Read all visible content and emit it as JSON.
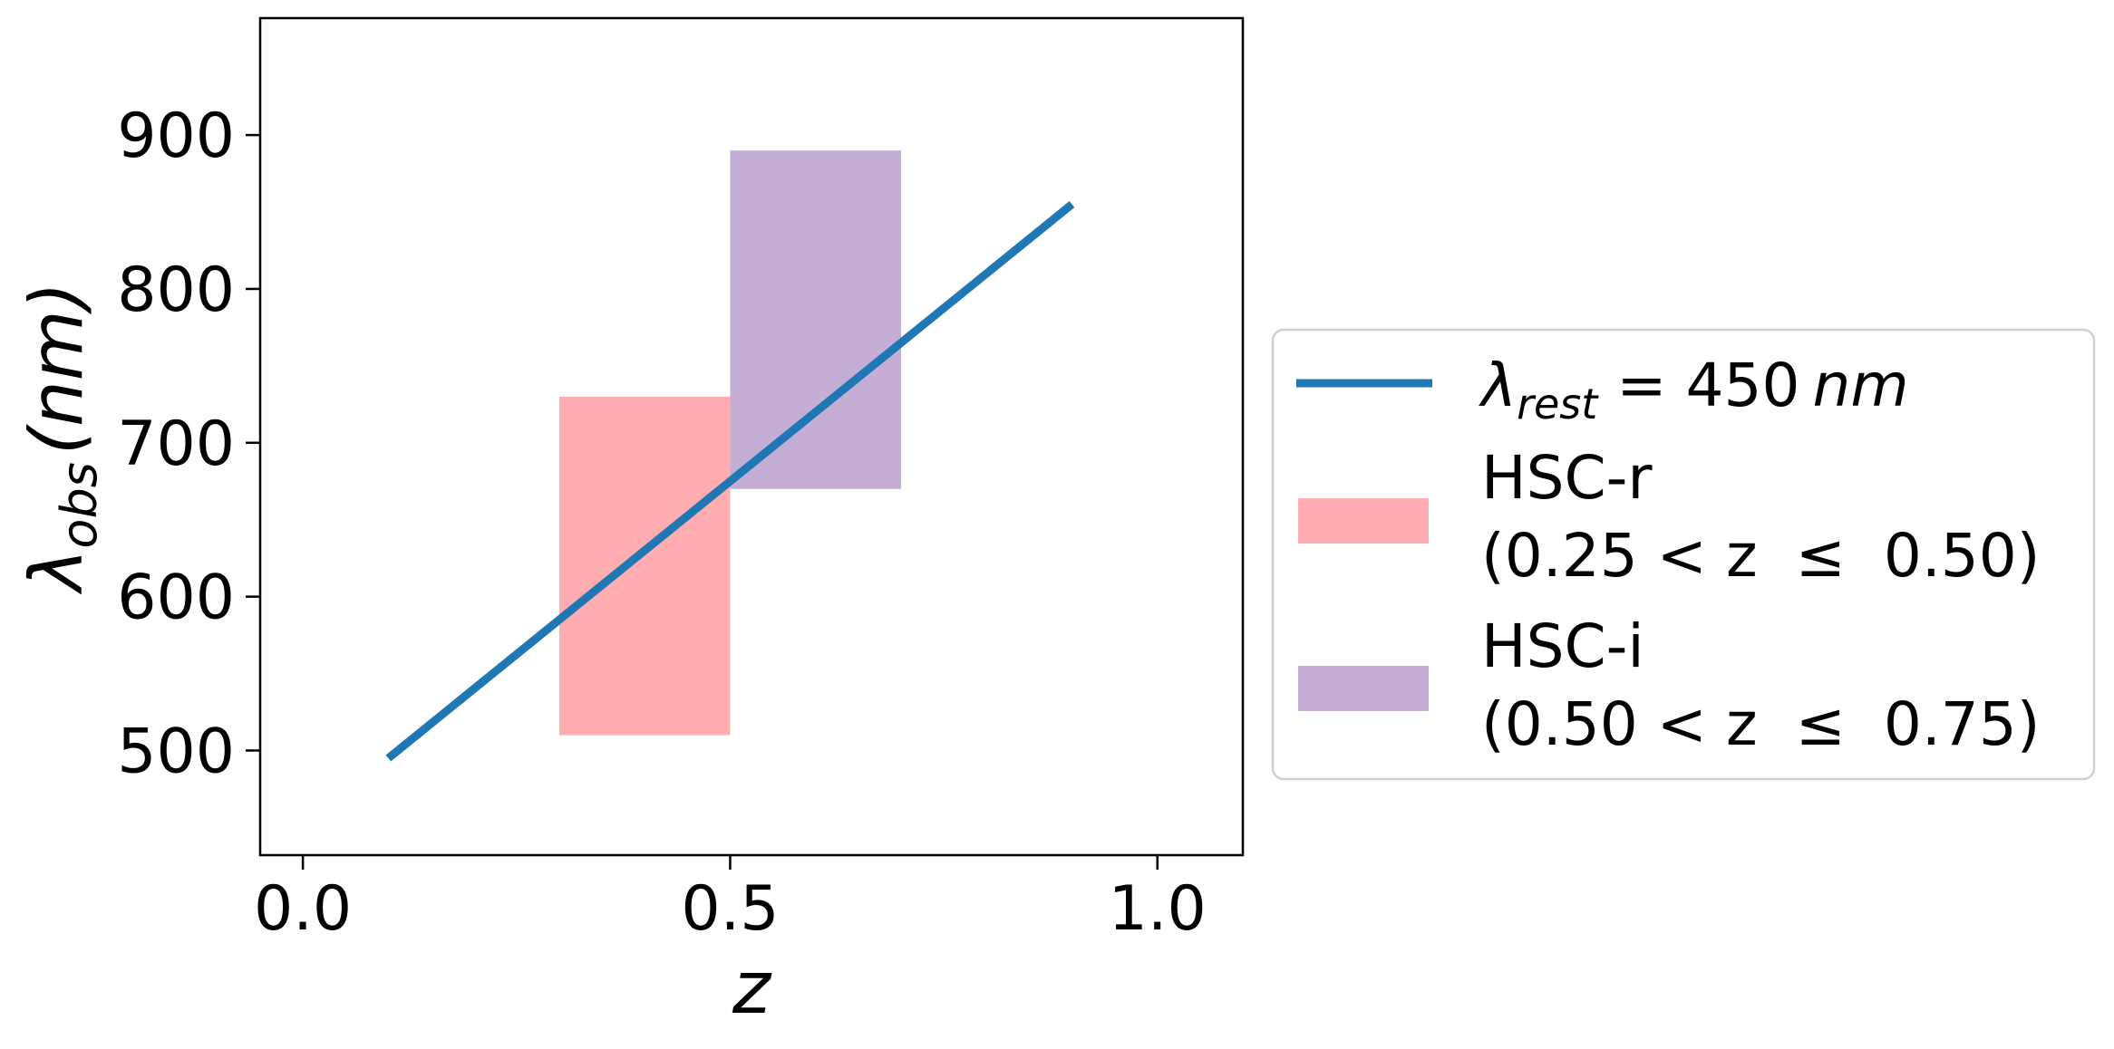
{
  "chart_data": {
    "type": "line",
    "xlabel": "z",
    "ylabel": {
      "symbol": "λ",
      "subscript": "obs",
      "unit": "(nm)"
    },
    "xlim": [
      -0.05,
      1.1
    ],
    "ylim": [
      432,
      976
    ],
    "x_ticks": [
      "0.0",
      "0.5",
      "1.0"
    ],
    "x_tick_values": [
      0.0,
      0.5,
      1.0
    ],
    "y_ticks": [
      "500",
      "600",
      "700",
      "800",
      "900"
    ],
    "y_tick_values": [
      500,
      600,
      700,
      800,
      900
    ],
    "grid": false,
    "legend_position": "right",
    "series": [
      {
        "kind": "line",
        "label": {
          "symbol": "λ",
          "subscript": "rest",
          "rest": " = 450",
          "unit": "nm"
        },
        "color": "#1f77b4",
        "x": [
          0.1,
          0.9
        ],
        "y": [
          495,
          855
        ]
      }
    ],
    "bands": [
      {
        "label_line1": "HSC-r",
        "label_line2": "(0.25 < z  ≤  0.50)",
        "color": "#ffadb0",
        "x_range": [
          0.3,
          0.5
        ],
        "y_range": [
          510,
          730
        ]
      },
      {
        "label_line1": "HSC-i",
        "label_line2": "(0.50 < z  ≤  0.75)",
        "color": "#c5aed6",
        "x_range": [
          0.5,
          0.7
        ],
        "y_range": [
          670,
          890
        ]
      }
    ]
  }
}
